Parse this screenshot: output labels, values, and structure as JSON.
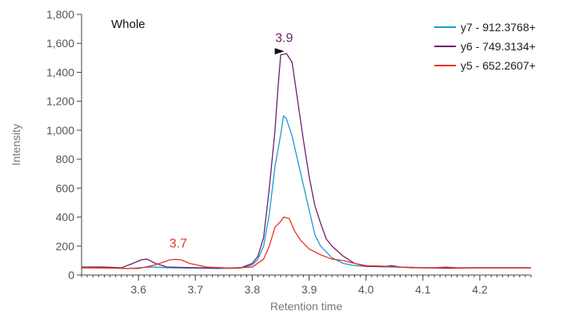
{
  "chart_data": {
    "type": "line",
    "title": "Whole",
    "xlabel": "Retention time",
    "ylabel": "Intensity",
    "xlim": [
      3.5,
      4.29
    ],
    "ylim": [
      0,
      1800
    ],
    "x_ticks": [
      3.6,
      3.7,
      3.8,
      3.9,
      4.0,
      4.1,
      4.2
    ],
    "x_tick_labels": [
      "3.6",
      "3.7",
      "3.8",
      "3.9",
      "4.0",
      "4.1",
      "4.2"
    ],
    "y_ticks": [
      0,
      200,
      400,
      600,
      800,
      1000,
      1200,
      1400,
      1600,
      1800
    ],
    "y_tick_labels": [
      "0",
      "200",
      "400",
      "600",
      "800",
      "1,000",
      "1,200",
      "1,400",
      "1,600",
      "1,800"
    ],
    "legend_position": "top-right",
    "grid": false,
    "series": [
      {
        "name": "y7 - 912.3768+",
        "color": "#1b9bd1",
        "points": [
          [
            3.5,
            50
          ],
          [
            3.54,
            50
          ],
          [
            3.58,
            45
          ],
          [
            3.62,
            55
          ],
          [
            3.66,
            50
          ],
          [
            3.7,
            48
          ],
          [
            3.74,
            45
          ],
          [
            3.78,
            48
          ],
          [
            3.8,
            70
          ],
          [
            3.81,
            110
          ],
          [
            3.82,
            200
          ],
          [
            3.83,
            420
          ],
          [
            3.84,
            750
          ],
          [
            3.85,
            970
          ],
          [
            3.855,
            1100
          ],
          [
            3.86,
            1080
          ],
          [
            3.87,
            960
          ],
          [
            3.88,
            790
          ],
          [
            3.89,
            620
          ],
          [
            3.9,
            450
          ],
          [
            3.91,
            280
          ],
          [
            3.92,
            200
          ],
          [
            3.94,
            120
          ],
          [
            3.96,
            80
          ],
          [
            3.98,
            65
          ],
          [
            4.0,
            60
          ],
          [
            4.05,
            55
          ],
          [
            4.1,
            50
          ],
          [
            4.15,
            48
          ],
          [
            4.2,
            50
          ],
          [
            4.29,
            50
          ]
        ]
      },
      {
        "name": "y6 - 749.3134+",
        "color": "#6a1f6e",
        "points": [
          [
            3.5,
            55
          ],
          [
            3.54,
            55
          ],
          [
            3.57,
            50
          ],
          [
            3.59,
            80
          ],
          [
            3.605,
            105
          ],
          [
            3.615,
            110
          ],
          [
            3.63,
            80
          ],
          [
            3.65,
            55
          ],
          [
            3.7,
            50
          ],
          [
            3.74,
            48
          ],
          [
            3.78,
            50
          ],
          [
            3.8,
            80
          ],
          [
            3.81,
            130
          ],
          [
            3.82,
            260
          ],
          [
            3.83,
            600
          ],
          [
            3.84,
            1000
          ],
          [
            3.845,
            1280
          ],
          [
            3.85,
            1520
          ],
          [
            3.86,
            1530
          ],
          [
            3.87,
            1470
          ],
          [
            3.88,
            1200
          ],
          [
            3.89,
            930
          ],
          [
            3.9,
            680
          ],
          [
            3.91,
            480
          ],
          [
            3.92,
            360
          ],
          [
            3.93,
            250
          ],
          [
            3.94,
            200
          ],
          [
            3.96,
            130
          ],
          [
            3.98,
            80
          ],
          [
            4.0,
            60
          ],
          [
            4.03,
            58
          ],
          [
            4.045,
            65
          ],
          [
            4.06,
            55
          ],
          [
            4.1,
            50
          ],
          [
            4.15,
            48
          ],
          [
            4.2,
            50
          ],
          [
            4.29,
            50
          ]
        ]
      },
      {
        "name": "y5 - 652.2607+",
        "color": "#e8331f",
        "points": [
          [
            3.5,
            50
          ],
          [
            3.55,
            48
          ],
          [
            3.6,
            45
          ],
          [
            3.63,
            70
          ],
          [
            3.655,
            105
          ],
          [
            3.665,
            108
          ],
          [
            3.675,
            105
          ],
          [
            3.69,
            80
          ],
          [
            3.72,
            55
          ],
          [
            3.76,
            48
          ],
          [
            3.8,
            55
          ],
          [
            3.82,
            110
          ],
          [
            3.83,
            200
          ],
          [
            3.84,
            330
          ],
          [
            3.85,
            370
          ],
          [
            3.855,
            400
          ],
          [
            3.865,
            390
          ],
          [
            3.875,
            300
          ],
          [
            3.885,
            240
          ],
          [
            3.9,
            180
          ],
          [
            3.92,
            140
          ],
          [
            3.94,
            110
          ],
          [
            3.96,
            100
          ],
          [
            3.98,
            80
          ],
          [
            4.0,
            65
          ],
          [
            4.04,
            60
          ],
          [
            4.08,
            50
          ],
          [
            4.12,
            50
          ],
          [
            4.14,
            55
          ],
          [
            4.16,
            50
          ],
          [
            4.2,
            50
          ],
          [
            4.29,
            50
          ]
        ]
      }
    ],
    "annotations": [
      {
        "text": "3.9",
        "x": 3.856,
        "y": 1610,
        "color": "#6a1f6e"
      },
      {
        "text": "3.7",
        "x": 3.67,
        "y": 190,
        "color": "#e8331f"
      }
    ],
    "peak_marker": {
      "x": 3.848,
      "y": 1545,
      "color": "#111111"
    }
  }
}
